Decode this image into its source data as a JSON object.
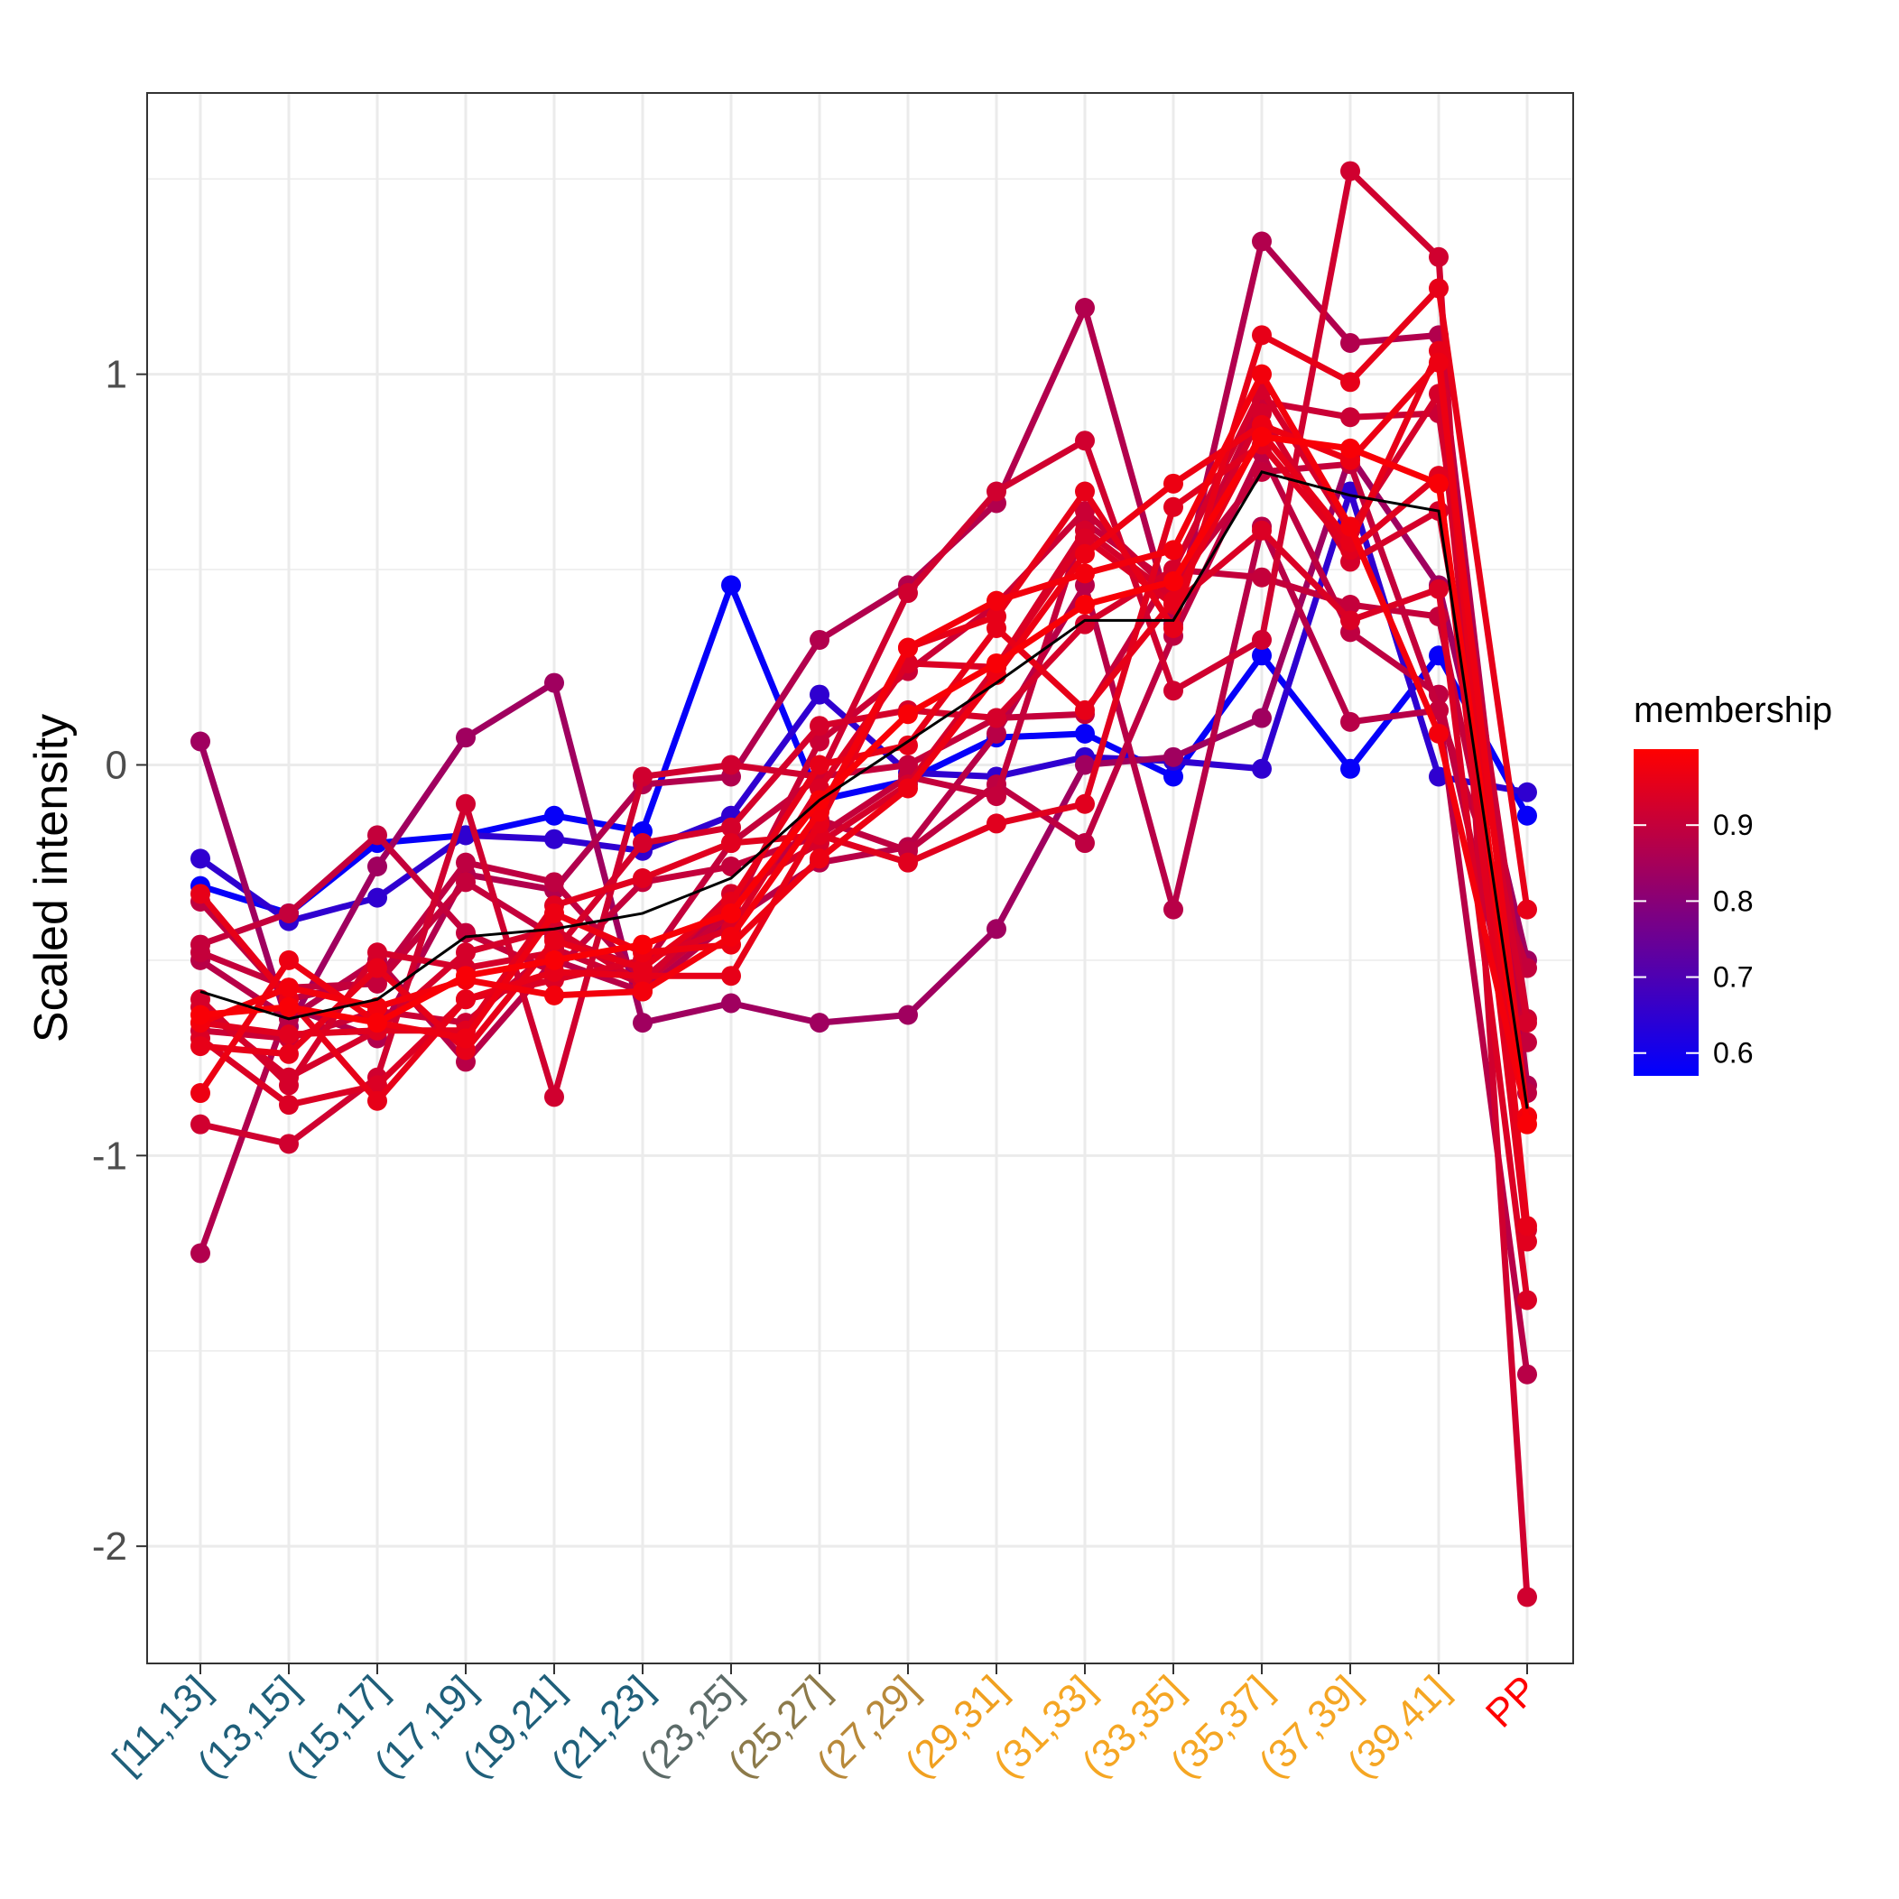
{
  "chart_data": {
    "type": "line",
    "title": "",
    "xlabel": "",
    "ylabel": "Scaled intensity",
    "ylim": [
      -2.3,
      1.72
    ],
    "yticks": [
      1,
      0,
      -1,
      -2
    ],
    "ytick_labels": [
      "1",
      "0",
      "-1",
      "-2"
    ],
    "grid": true,
    "categories": [
      "[11,13]",
      "(13,15]",
      "(15,17]",
      "(17,19]",
      "(19,21]",
      "(21,23]",
      "(23,25]",
      "(25,27]",
      "(27,29]",
      "(29,31]",
      "(31,33]",
      "(33,35]",
      "(35,37]",
      "(37,39]",
      "(39,41]",
      "PP"
    ],
    "category_colors": [
      "#1f5f7a",
      "#1f5f7a",
      "#1f5f7a",
      "#1f5f7a",
      "#1f5f7a",
      "#1f5f7a",
      "#5c6b68",
      "#8c7a4a",
      "#b8893a",
      "#f0a020",
      "#f5a623",
      "#f5a623",
      "#f5a623",
      "#f5a623",
      "#f5a623",
      "#ff0000"
    ],
    "legend": {
      "title": "membership",
      "position": "right",
      "min": 0.57,
      "max": 1.0,
      "ticks": [
        0.6,
        0.7,
        0.8,
        0.9
      ],
      "tick_labels": [
        "0.6",
        "0.7",
        "0.8",
        "0.9"
      ],
      "low_color": "#0000ff",
      "high_color": "#ff0000"
    },
    "centroid": {
      "color": "#000000",
      "values": [
        -0.58,
        -0.65,
        -0.6,
        -0.44,
        -0.42,
        -0.38,
        -0.29,
        -0.09,
        0.06,
        0.21,
        0.37,
        0.37,
        0.75,
        0.69,
        0.65,
        -0.88
      ]
    },
    "series": [
      {
        "membership": 0.58,
        "values": [
          -0.31,
          -0.38,
          -0.2,
          -0.18,
          -0.13,
          -0.17,
          0.46,
          -0.09,
          -0.04,
          0.07,
          0.08,
          -0.03,
          0.28,
          -0.01,
          0.28,
          -0.13
        ]
      },
      {
        "membership": 0.65,
        "values": [
          -0.24,
          -0.4,
          -0.34,
          -0.18,
          -0.19,
          -0.22,
          -0.13,
          0.18,
          -0.02,
          -0.03,
          0.02,
          0.01,
          -0.01,
          0.7,
          -0.03,
          -0.07
        ]
      },
      {
        "membership": 0.84,
        "values": [
          0.06,
          -0.67,
          -0.26,
          0.07,
          0.21,
          -0.66,
          -0.61,
          -0.66,
          -0.64,
          -0.42,
          0.0,
          0.02,
          0.12,
          0.79,
          0.46,
          -0.5
        ]
      },
      {
        "membership": 0.87,
        "values": [
          -1.25,
          -0.62,
          -0.7,
          -0.28,
          -0.32,
          -0.05,
          -0.03,
          0.32,
          0.46,
          0.67,
          1.17,
          0.36,
          1.34,
          1.08,
          1.1,
          -0.82
        ]
      },
      {
        "membership": 0.92,
        "values": [
          -0.92,
          -0.97,
          -0.8,
          -0.1,
          -0.85,
          -0.03,
          0.0,
          -0.03,
          0.44,
          0.7,
          0.83,
          0.19,
          0.32,
          1.52,
          1.3,
          -2.13
        ]
      },
      {
        "membership": 0.88,
        "values": [
          -0.5,
          -0.65,
          -0.5,
          -0.76,
          -0.5,
          -0.58,
          -0.4,
          -0.25,
          -0.21,
          0.08,
          0.46,
          -0.37,
          0.61,
          0.11,
          0.14,
          -1.56
        ]
      },
      {
        "membership": 0.96,
        "values": [
          -0.33,
          -0.6,
          -0.86,
          -0.6,
          -0.53,
          -0.54,
          -0.54,
          -0.15,
          0.3,
          0.38,
          0.7,
          0.35,
          1.1,
          0.98,
          1.22,
          -0.37
        ]
      },
      {
        "membership": 0.91,
        "values": [
          -0.68,
          -0.7,
          -0.63,
          -0.66,
          -0.47,
          -0.56,
          -0.38,
          0.06,
          0.24,
          0.41,
          0.65,
          0.44,
          0.93,
          0.89,
          0.9,
          -0.65
        ]
      },
      {
        "membership": 0.97,
        "values": [
          -0.84,
          -0.5,
          -0.66,
          -0.7,
          -0.38,
          -0.48,
          -0.46,
          -0.24,
          -0.06,
          0.23,
          0.54,
          0.72,
          0.87,
          0.78,
          1.03,
          -0.9
        ]
      },
      {
        "membership": 0.93,
        "values": [
          -0.6,
          -0.82,
          -0.48,
          -0.52,
          -0.48,
          -0.2,
          -0.16,
          0.1,
          0.14,
          0.12,
          0.36,
          0.5,
          0.96,
          0.6,
          0.95,
          -1.19
        ]
      },
      {
        "membership": 0.95,
        "values": [
          -0.66,
          -0.69,
          -0.68,
          -0.68,
          -0.36,
          -0.29,
          -0.2,
          -0.18,
          -0.25,
          -0.15,
          -0.1,
          0.66,
          0.82,
          0.55,
          0.74,
          -1.22
        ]
      },
      {
        "membership": 0.94,
        "values": [
          -0.7,
          -0.87,
          -0.82,
          -0.6,
          -0.55,
          -0.5,
          -0.42,
          -0.06,
          0.26,
          0.25,
          0.58,
          0.41,
          0.6,
          0.37,
          0.45,
          -1.37
        ]
      },
      {
        "membership": 0.9,
        "values": [
          -0.48,
          -0.57,
          -0.56,
          -0.3,
          -0.44,
          -0.52,
          -0.2,
          -0.03,
          0.0,
          0.12,
          0.13,
          0.5,
          0.48,
          0.41,
          0.38,
          -0.71
        ]
      },
      {
        "membership": 0.89,
        "values": [
          -0.35,
          -0.6,
          -0.55,
          -0.25,
          -0.3,
          -0.55,
          -0.36,
          -0.14,
          -0.22,
          -0.05,
          -0.2,
          0.33,
          0.8,
          0.34,
          0.18,
          -0.84
        ]
      },
      {
        "membership": 0.98,
        "values": [
          -0.66,
          -0.57,
          -0.62,
          -0.55,
          -0.59,
          -0.58,
          -0.44,
          -0.12,
          0.3,
          0.42,
          0.49,
          0.55,
          1.0,
          0.61,
          0.08,
          -0.9
        ]
      },
      {
        "membership": 0.9,
        "values": [
          -0.46,
          -0.38,
          -0.18,
          -0.43,
          -0.53,
          -0.3,
          -0.26,
          -0.18,
          -0.03,
          -0.08,
          0.62,
          0.46,
          0.75,
          0.77,
          0.14,
          -0.52
        ]
      },
      {
        "membership": 0.96,
        "values": [
          -0.72,
          -0.74,
          -0.52,
          -0.73,
          -0.45,
          -0.52,
          -0.35,
          0.0,
          0.05,
          0.35,
          0.14,
          0.42,
          0.85,
          0.57,
          1.06,
          -1.18
        ]
      },
      {
        "membership": 0.93,
        "values": [
          -0.62,
          -0.8,
          -0.68,
          -0.48,
          -0.42,
          -0.56,
          -0.33,
          -0.2,
          -0.05,
          0.25,
          0.6,
          0.43,
          0.9,
          0.52,
          0.65,
          -0.66
        ]
      },
      {
        "membership": 0.99,
        "values": [
          -0.64,
          -0.62,
          -0.66,
          -0.54,
          -0.5,
          -0.46,
          -0.38,
          -0.09,
          0.13,
          0.26,
          0.41,
          0.47,
          0.84,
          0.81,
          0.72,
          -0.92
        ]
      }
    ]
  }
}
